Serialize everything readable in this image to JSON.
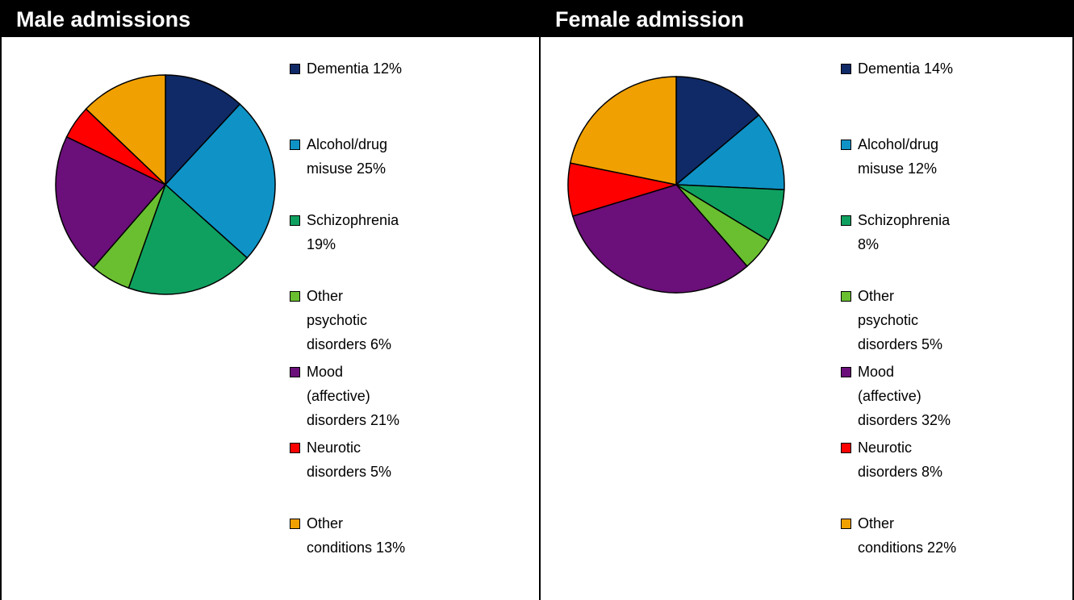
{
  "chart_data": [
    {
      "type": "pie",
      "title": "Male admissions",
      "categories": [
        "Dementia 12%",
        "Alcohol/drug misuse 25%",
        "Schizophrenia 19%",
        "Other psychotic disorders 6%",
        "Mood (affective) disorders 21%",
        "Neurotic disorders 5%",
        "Other conditions 13%"
      ],
      "values": [
        12,
        25,
        19,
        6,
        21,
        5,
        13
      ],
      "colors": [
        "#0f2a66",
        "#0f93c6",
        "#0fa060",
        "#6abf30",
        "#6b0f7a",
        "#ff0000",
        "#f0a000"
      ]
    },
    {
      "type": "pie",
      "title": "Female admission",
      "categories": [
        "Dementia 14%",
        "Alcohol/drug misuse 12%",
        "Schizophrenia 8%",
        "Other psychotic disorders 5%",
        "Mood (affective) disorders 32%",
        "Neurotic disorders 8%",
        "Other conditions 22%"
      ],
      "values": [
        14,
        12,
        8,
        5,
        32,
        8,
        22
      ],
      "colors": [
        "#0f2a66",
        "#0f93c6",
        "#0fa060",
        "#6abf30",
        "#6b0f7a",
        "#ff0000",
        "#f0a000"
      ]
    }
  ]
}
